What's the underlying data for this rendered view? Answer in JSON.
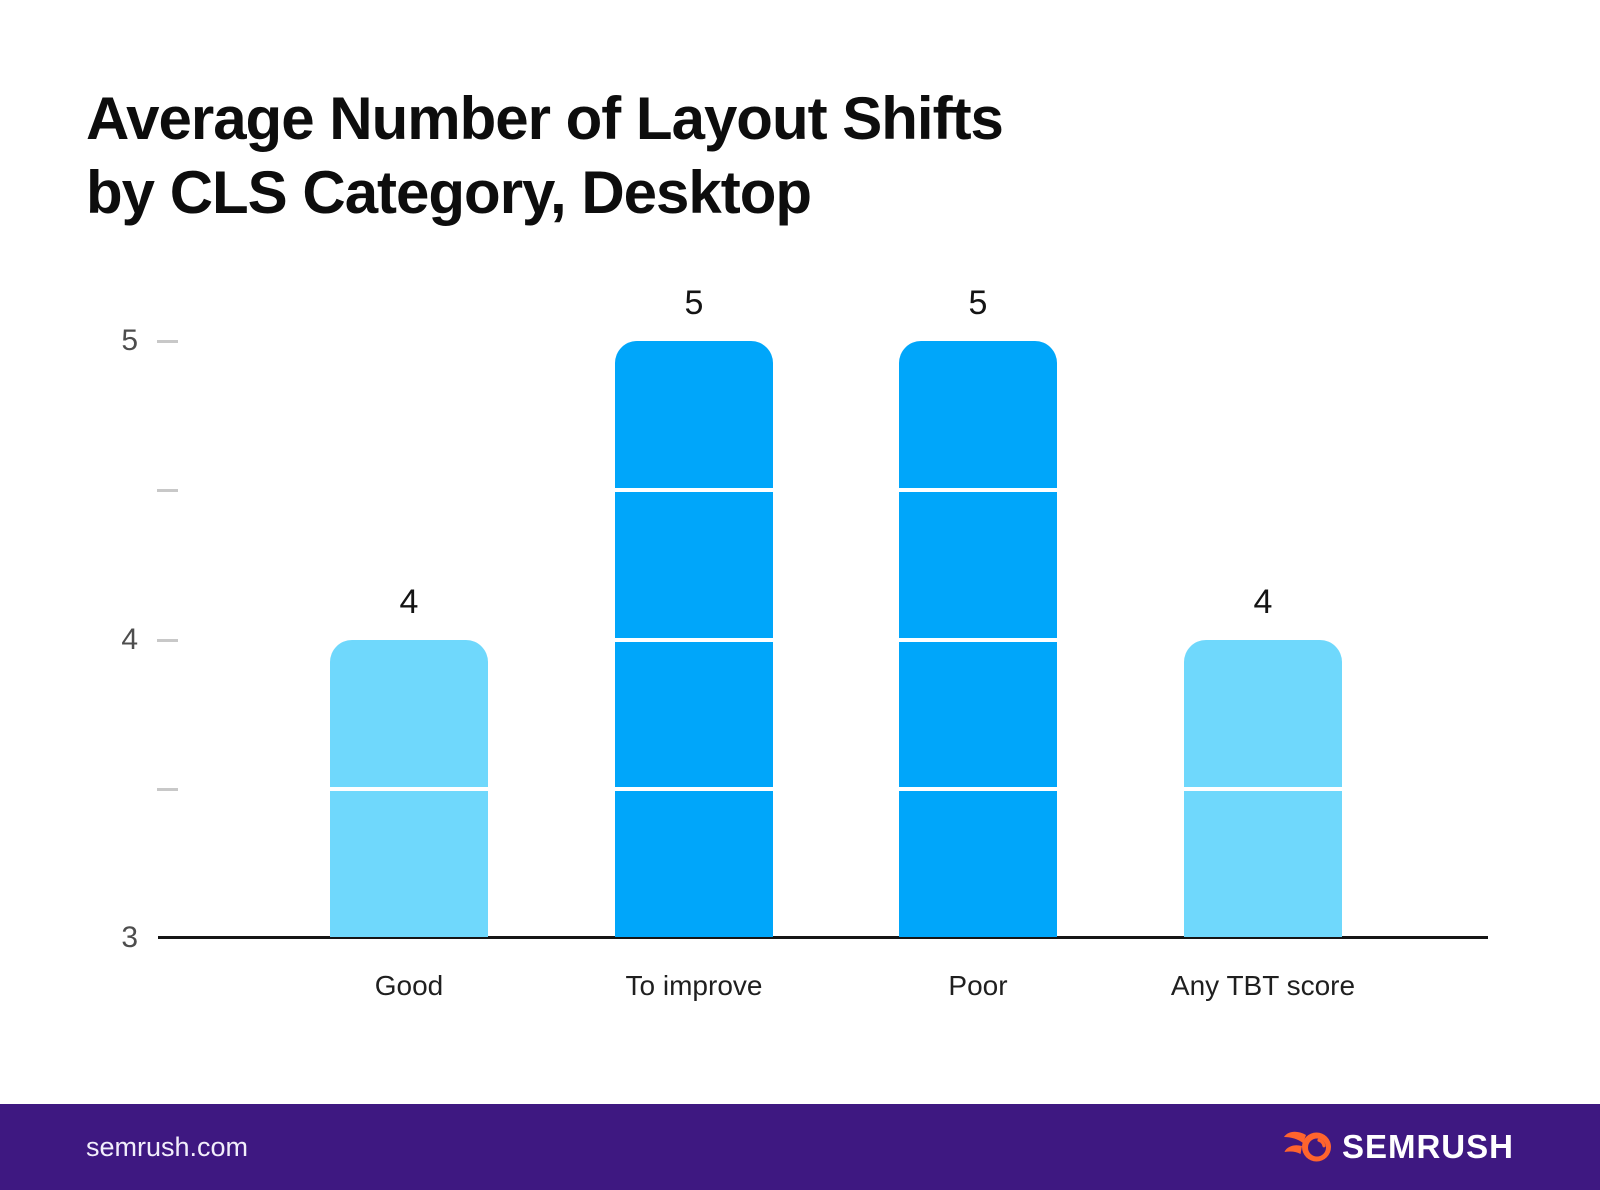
{
  "title": {
    "line1": "Average Number of Layout Shifts",
    "line2": "by CLS Category, Desktop"
  },
  "chart_data": {
    "type": "bar",
    "title": "Average Number of Layout Shifts by CLS Category, Desktop",
    "categories": [
      "Good",
      "To improve",
      "Poor",
      "Any TBT score"
    ],
    "values": [
      4,
      5,
      5,
      4
    ],
    "value_labels": [
      "4",
      "5",
      "5",
      "4"
    ],
    "colors": [
      "#6FD8FC",
      "#00A6FA",
      "#00A6FA",
      "#6FD8FC"
    ],
    "xlabel": "",
    "ylabel": "",
    "ylim": [
      3,
      5
    ],
    "yticks_labeled": [
      5,
      4,
      3
    ],
    "yticks_minor": [
      4.5,
      3.5
    ],
    "segment_lines_every": 0.5,
    "grid": false,
    "legend": false
  },
  "axis": {
    "tick_color": "#C8C8C8",
    "tick_label_color": "#4D4D4D",
    "baseline_color": "#151515",
    "value_label_color": "#141414",
    "category_label_color": "#1F1F1F"
  },
  "footer": {
    "site": "semrush.com",
    "brand": "SEMRUSH",
    "background": "#3E1881",
    "logo_color": "#FF642D",
    "text_color": "#FFFFFF"
  }
}
